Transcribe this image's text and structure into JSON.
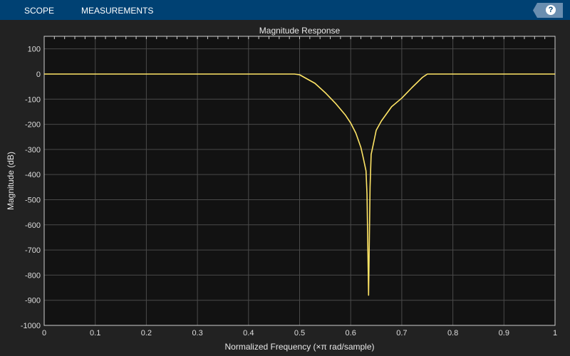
{
  "toolbar": {
    "tabs": [
      {
        "label": "SCOPE"
      },
      {
        "label": "MEASUREMENTS"
      }
    ],
    "help_icon": "question-circle-icon",
    "help_label": "?"
  },
  "colors": {
    "toolbar": "#004173",
    "background": "#222222",
    "plot_background": "#121212",
    "grid": "#4a4a4a",
    "line": "#ffe566"
  },
  "chart_data": {
    "type": "line",
    "title": "Magnitude Response",
    "xlabel": "Normalized Frequency (×π rad/sample)",
    "ylabel": "Magnitude (dB)",
    "xlim": [
      0,
      1
    ],
    "ylim": [
      -1000,
      150
    ],
    "grid": true,
    "xticks": [
      "0",
      "0.1",
      "0.2",
      "0.3",
      "0.4",
      "0.5",
      "0.6",
      "0.7",
      "0.8",
      "0.9",
      "1"
    ],
    "yticks": [
      "100",
      "0",
      "-100",
      "-200",
      "-300",
      "-400",
      "-500",
      "-600",
      "-700",
      "-800",
      "-900",
      "-1000"
    ],
    "series": [
      {
        "x": [
          0,
          0.49,
          0.5,
          0.53,
          0.55,
          0.57,
          0.59,
          0.6,
          0.61,
          0.62,
          0.625,
          0.63,
          0.632,
          0.635,
          0.638,
          0.64,
          0.645,
          0.65,
          0.66,
          0.68,
          0.7,
          0.72,
          0.74,
          0.75,
          1
        ],
        "y": [
          0,
          0,
          -3,
          -37,
          -74,
          -116,
          -164,
          -195,
          -235,
          -292,
          -337,
          -385,
          -479,
          -880,
          -450,
          -320,
          -272,
          -224,
          -187,
          -130,
          -96,
          -54,
          -14,
          0,
          0
        ]
      }
    ]
  }
}
